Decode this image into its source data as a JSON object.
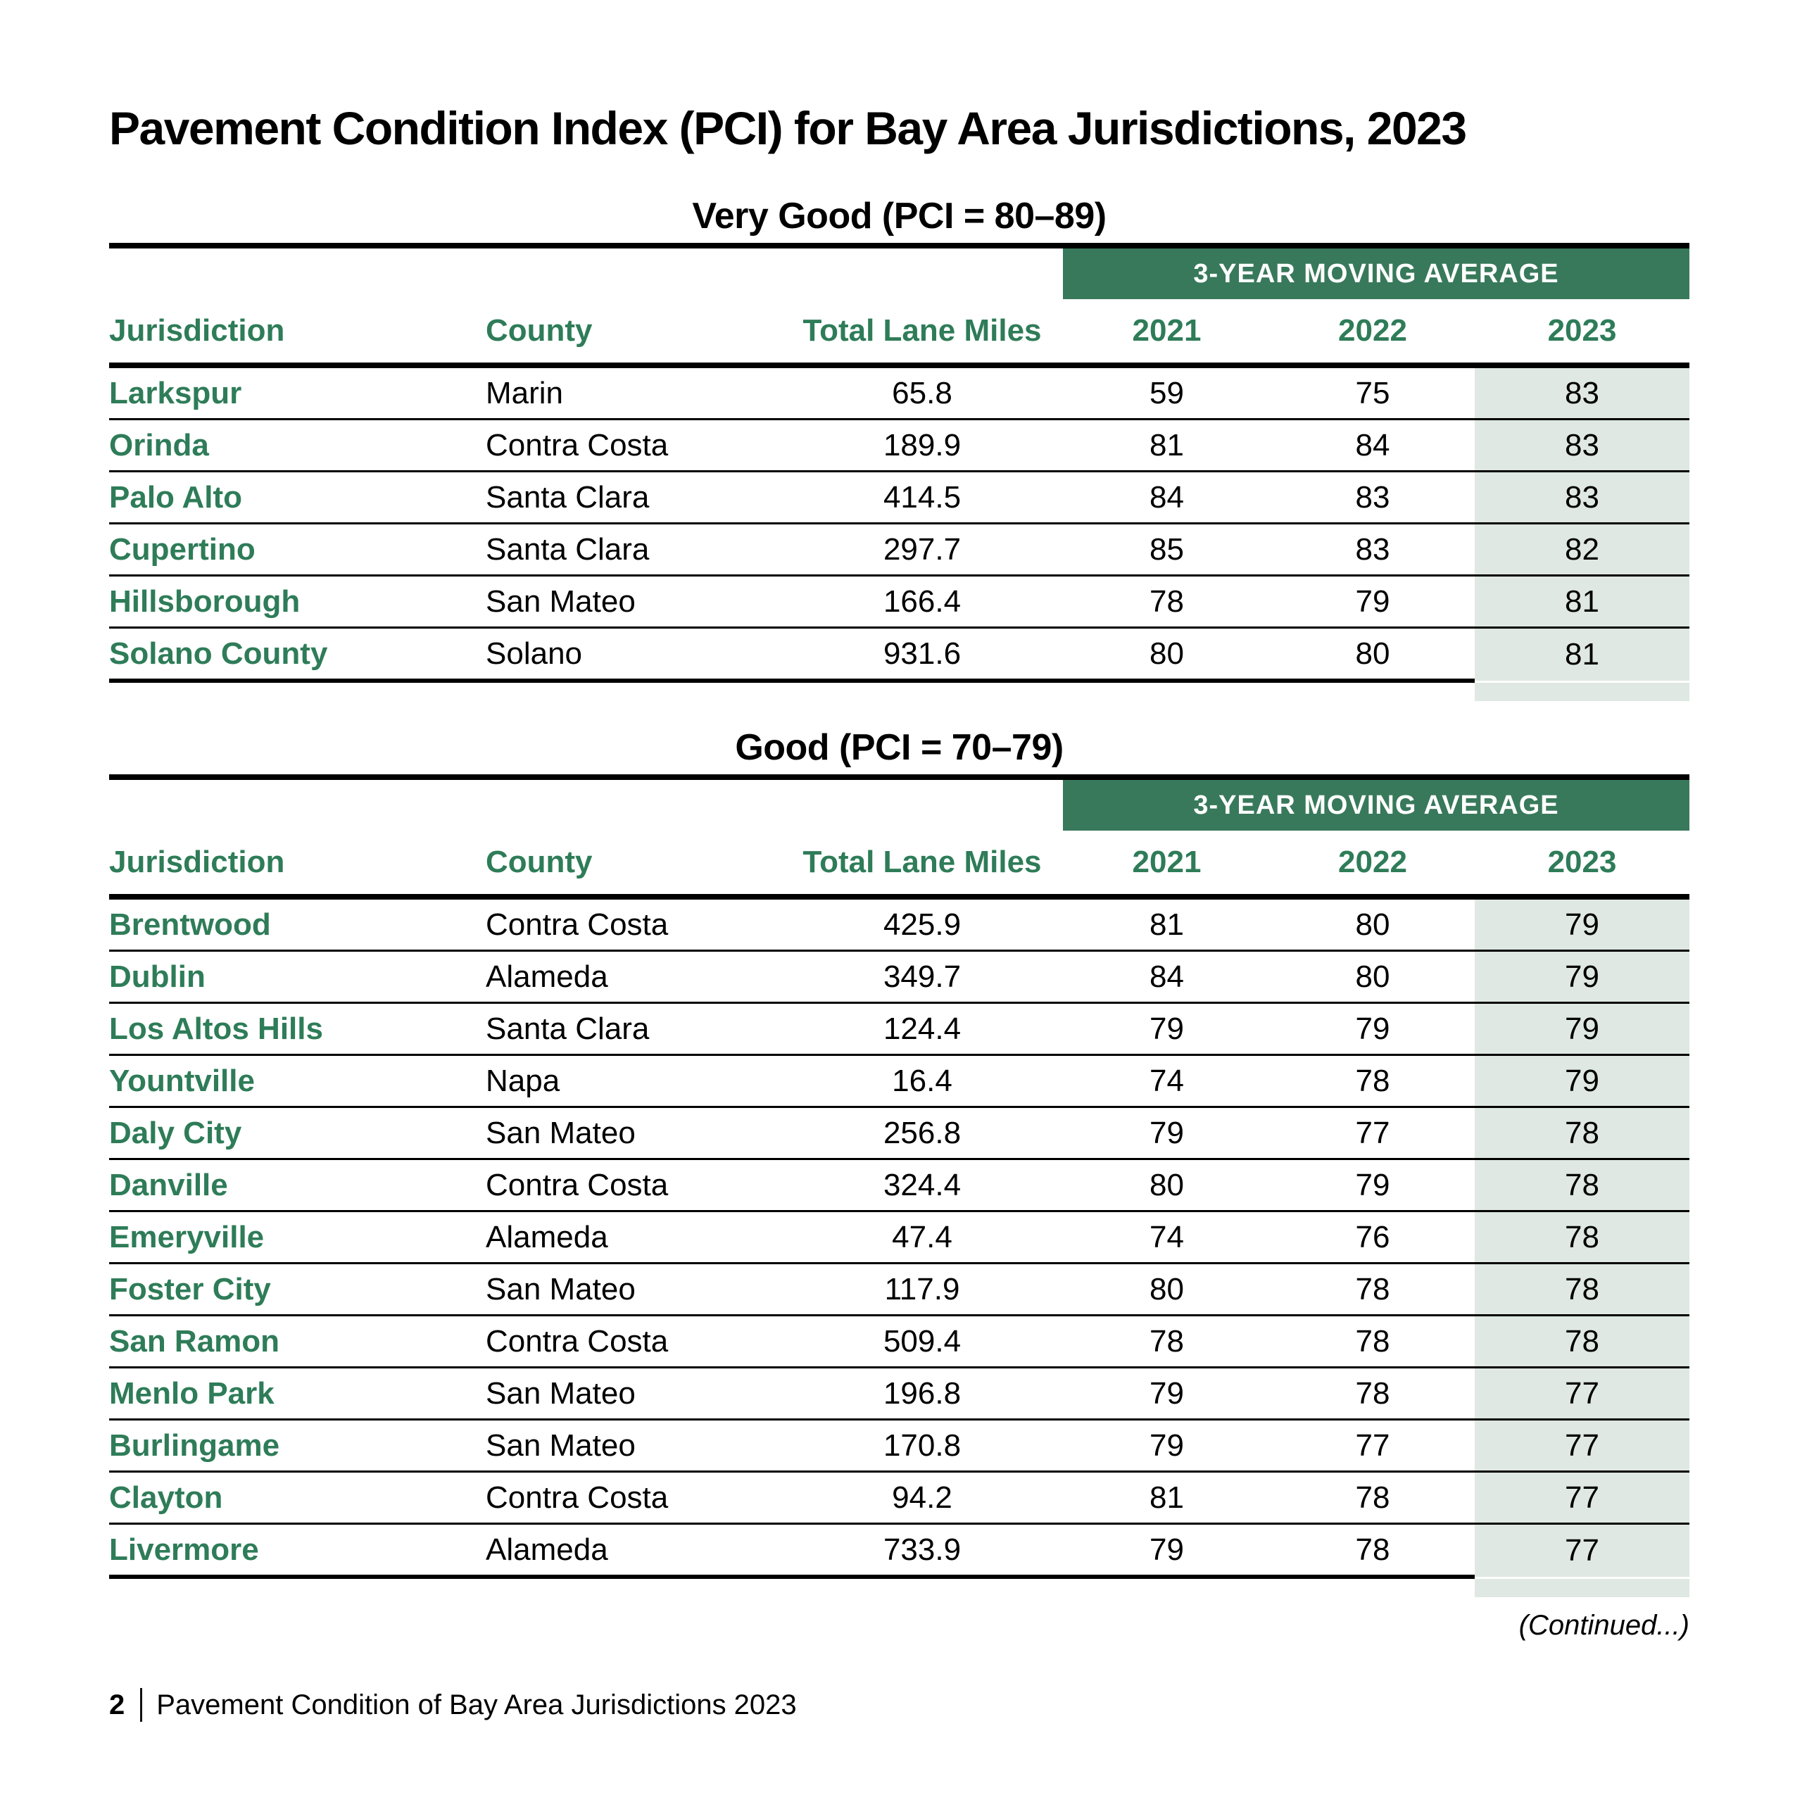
{
  "page": {
    "title": "Pavement Condition Index (PCI) for Bay Area Jurisdictions, 2023",
    "continued_note": "(Continued...)",
    "footer": {
      "page_number": "2",
      "text": "Pavement Condition of Bay Area Jurisdictions 2023"
    }
  },
  "colors": {
    "banner_green": "#38795B",
    "text_green": "#2E7C58",
    "light_green_column": "#DFE8E2"
  },
  "tables": [
    {
      "section_title": "Very Good (PCI = 80–89)",
      "banner": "3-YEAR MOVING AVERAGE",
      "columns": [
        "Jurisdiction",
        "County",
        "Total Lane Miles",
        "2021",
        "2022",
        "2023"
      ],
      "rows": [
        [
          "Larkspur",
          "Marin",
          "65.8",
          "59",
          "75",
          "83"
        ],
        [
          "Orinda",
          "Contra Costa",
          "189.9",
          "81",
          "84",
          "83"
        ],
        [
          "Palo Alto",
          "Santa Clara",
          "414.5",
          "84",
          "83",
          "83"
        ],
        [
          "Cupertino",
          "Santa Clara",
          "297.7",
          "85",
          "83",
          "82"
        ],
        [
          "Hillsborough",
          "San Mateo",
          "166.4",
          "78",
          "79",
          "81"
        ],
        [
          "Solano County",
          "Solano",
          "931.6",
          "80",
          "80",
          "81"
        ]
      ]
    },
    {
      "section_title": "Good (PCI = 70–79)",
      "banner": "3-YEAR MOVING AVERAGE",
      "columns": [
        "Jurisdiction",
        "County",
        "Total Lane Miles",
        "2021",
        "2022",
        "2023"
      ],
      "rows": [
        [
          "Brentwood",
          "Contra Costa",
          "425.9",
          "81",
          "80",
          "79"
        ],
        [
          "Dublin",
          "Alameda",
          "349.7",
          "84",
          "80",
          "79"
        ],
        [
          "Los Altos Hills",
          "Santa Clara",
          "124.4",
          "79",
          "79",
          "79"
        ],
        [
          "Yountville",
          "Napa",
          "16.4",
          "74",
          "78",
          "79"
        ],
        [
          "Daly City",
          "San Mateo",
          "256.8",
          "79",
          "77",
          "78"
        ],
        [
          "Danville",
          "Contra Costa",
          "324.4",
          "80",
          "79",
          "78"
        ],
        [
          "Emeryville",
          "Alameda",
          "47.4",
          "74",
          "76",
          "78"
        ],
        [
          "Foster City",
          "San Mateo",
          "117.9",
          "80",
          "78",
          "78"
        ],
        [
          "San Ramon",
          "Contra Costa",
          "509.4",
          "78",
          "78",
          "78"
        ],
        [
          "Menlo Park",
          "San Mateo",
          "196.8",
          "79",
          "78",
          "77"
        ],
        [
          "Burlingame",
          "San Mateo",
          "170.8",
          "79",
          "77",
          "77"
        ],
        [
          "Clayton",
          "Contra Costa",
          "94.2",
          "81",
          "78",
          "77"
        ],
        [
          "Livermore",
          "Alameda",
          "733.9",
          "79",
          "78",
          "77"
        ]
      ]
    }
  ]
}
